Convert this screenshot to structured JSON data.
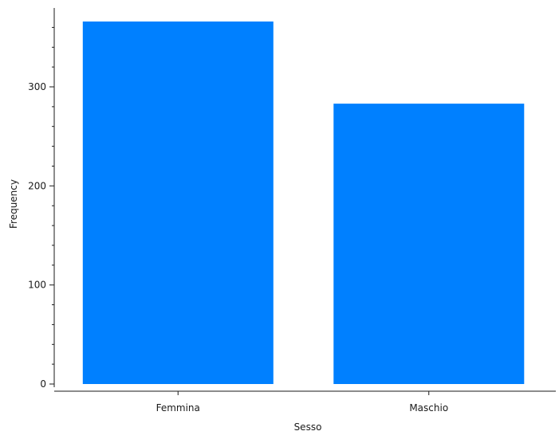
{
  "chart_data": {
    "type": "bar",
    "title": "",
    "xlabel": "Sesso",
    "ylabel": "Frequency",
    "categories": [
      "Femmina",
      "Maschio"
    ],
    "values": [
      366,
      283
    ],
    "ylim": [
      0,
      380
    ],
    "yticks": [
      0,
      100,
      200,
      300
    ],
    "ytick_labels": [
      "0",
      "100",
      "200",
      "300"
    ],
    "minor_tick_step": 20,
    "bar_color": "#0080ff",
    "axis_color": "#1a1a1a",
    "grid": false,
    "legend": "none"
  }
}
